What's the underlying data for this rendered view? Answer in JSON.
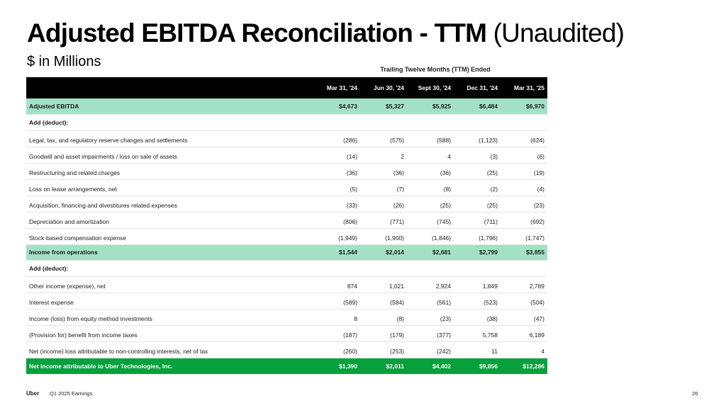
{
  "title": {
    "main": "Adjusted EBITDA Reconciliation - TTM",
    "paren": "(Unaudited)"
  },
  "subtitle": "$ in Millions",
  "period_label": "Trailing Twelve Months (TTM) Ended",
  "columns": [
    "Mar 31, '24",
    "Jun 30, '24",
    "Sept 30, '24",
    "Dec 31, '24",
    "Mar 31, '25"
  ],
  "rows": [
    {
      "label": "Adjusted EBITDA",
      "values": [
        "$4,673",
        "$5,327",
        "$5,925",
        "$6,484",
        "$6,970"
      ]
    },
    {
      "label": "Add (deduct):",
      "values": [
        "",
        "",
        "",
        "",
        ""
      ]
    },
    {
      "label": "Legal, tax, and regulatory reserve changes and settlements",
      "values": [
        "(286)",
        "(575)",
        "(588)",
        "(1,123)",
        "(624)"
      ]
    },
    {
      "label": "Goodwill and asset impairments / loss on sale of assets",
      "values": [
        "(14)",
        "2",
        "4",
        "(3)",
        "(6)"
      ]
    },
    {
      "label": "Restructuring and related charges",
      "values": [
        "(36)",
        "(36)",
        "(36)",
        "(25)",
        "(19)"
      ]
    },
    {
      "label": "Loss on lease arrangements, net",
      "values": [
        "(5)",
        "(7)",
        "(8)",
        "(2)",
        "(4)"
      ]
    },
    {
      "label": "Acquisition, financing and divestitures related expenses",
      "values": [
        "(33)",
        "(26)",
        "(25)",
        "(25)",
        "(23)"
      ]
    },
    {
      "label": "Depreciation and amortization",
      "values": [
        "(806)",
        "(771)",
        "(745)",
        "(711)",
        "(692)"
      ]
    },
    {
      "label": "Stock-based compensation expense",
      "values": [
        "(1,949)",
        "(1,900)",
        "(1,846)",
        "(1,796)",
        "(1,747)"
      ]
    },
    {
      "label": "Income from operations",
      "values": [
        "$1,544",
        "$2,014",
        "$2,681",
        "$2,799",
        "$3,855"
      ]
    },
    {
      "label": "Add (deduct):",
      "values": [
        "",
        "",
        "",
        "",
        ""
      ]
    },
    {
      "label": "Other income (expense), net",
      "values": [
        "874",
        "1,021",
        "2,924",
        "1,849",
        "2,789"
      ]
    },
    {
      "label": "Interest expense",
      "values": [
        "(589)",
        "(584)",
        "(561)",
        "(523)",
        "(504)"
      ]
    },
    {
      "label": "Income (loss) from equity method investments",
      "values": [
        "8",
        "(8)",
        "(23)",
        "(38)",
        "(47)"
      ]
    },
    {
      "label": "(Provision for) benefit from income taxes",
      "values": [
        "(187)",
        "(179)",
        "(377)",
        "5,758",
        "6,189"
      ]
    },
    {
      "label": "Net (income) loss attributable to non-controlling interests, net of tax",
      "values": [
        "(260)",
        "(253)",
        "(242)",
        "11",
        "4"
      ]
    },
    {
      "label": "Net income attributable to Uber Technologies, Inc.",
      "values": [
        "$1,390",
        "$2,011",
        "$4,402",
        "$9,856",
        "$12,286"
      ]
    }
  ],
  "colors": {
    "highlight": "#a3e1c6",
    "final": "#06a13d",
    "header": "#000000"
  },
  "footer": {
    "brand": "Uber",
    "report": "Q1 2025 Earnings",
    "page": "26"
  }
}
